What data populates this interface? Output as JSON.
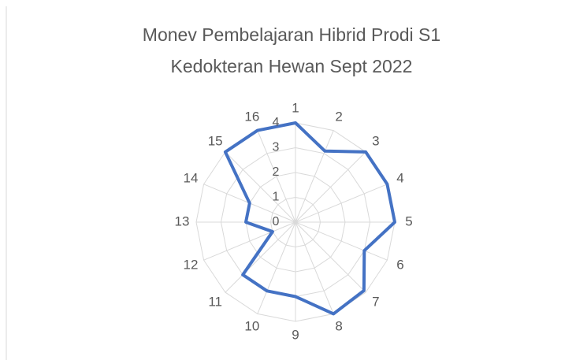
{
  "chart_data": {
    "type": "radar",
    "title_lines": [
      "Monev Pembelajaran Hibrid Prodi S1",
      "Kedokteran Hewan Sept 2022"
    ],
    "categories": [
      "1",
      "2",
      "3",
      "4",
      "5",
      "6",
      "7",
      "8",
      "9",
      "10",
      "11",
      "12",
      "13",
      "14",
      "15",
      "16"
    ],
    "series": [
      {
        "color": "#4472c4",
        "values": [
          4,
          3.1,
          4,
          4,
          4,
          3,
          3.9,
          4,
          3,
          3,
          3,
          1,
          2,
          2,
          4,
          4
        ]
      }
    ],
    "rlim": [
      0,
      4
    ],
    "rticks": [
      0,
      1,
      2,
      3,
      4
    ],
    "grid": true
  }
}
